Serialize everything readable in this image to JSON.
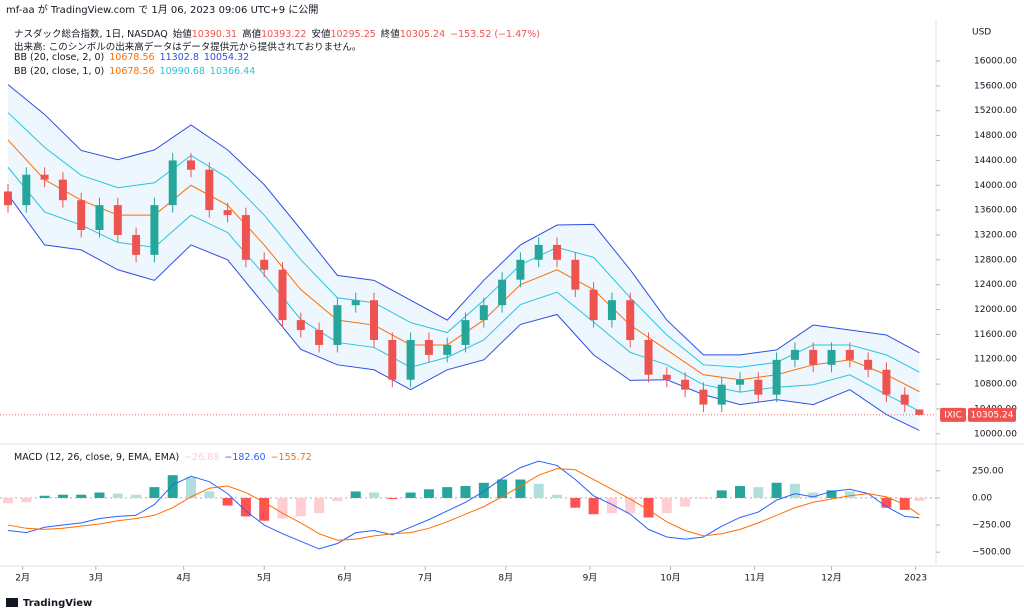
{
  "header": {
    "publisher": "mf-aa が TradingView.com で 1月 06, 2023 09:06 UTC+9 に公開",
    "footer": "TradingView"
  },
  "chart_data": [
    {
      "type": "candlestick",
      "title": "ナスダック総合指数, 1日, NASDAQ",
      "ohlc_labels": [
        "始値",
        "高値",
        "安値",
        "終値"
      ],
      "change": "−153.52 (−1.47%)",
      "volume_note": "出来高: このシンボルの出来高データはデータ提供元から提供されておりません。",
      "currency": "USD",
      "symbol": "IXIC",
      "up_color": "#26a69a",
      "down_color": "#ef5350",
      "x": [
        0,
        5,
        10,
        15,
        20,
        25,
        30,
        35,
        40,
        45,
        50,
        55,
        60,
        65,
        70,
        75,
        80,
        85,
        90,
        95,
        100,
        105,
        110,
        115,
        120,
        125,
        130,
        135,
        140,
        145,
        150,
        155,
        160,
        165,
        170,
        175,
        180,
        185,
        190,
        195,
        200,
        205,
        210,
        215,
        220,
        225,
        230,
        235,
        240,
        245,
        249
      ],
      "open": [
        13900,
        13680,
        14170,
        14090,
        13760,
        13280,
        13680,
        13200,
        12880,
        13680,
        14400,
        14250,
        13600,
        13520,
        12800,
        12640,
        11830,
        11670,
        11430,
        12070,
        12150,
        11510,
        10870,
        11510,
        11270,
        11430,
        11830,
        12070,
        12480,
        12800,
        13040,
        12800,
        12320,
        11830,
        12150,
        11510,
        10950,
        10870,
        10710,
        10470,
        10790,
        10870,
        10630,
        11190,
        11350,
        11110,
        11350,
        11190,
        11030,
        10630,
        10390.31
      ],
      "high": [
        14020,
        14290,
        14290,
        14210,
        13880,
        13800,
        13800,
        13320,
        13800,
        14520,
        14520,
        14370,
        13720,
        13640,
        12920,
        12760,
        11950,
        11790,
        12190,
        12270,
        12270,
        11630,
        11630,
        11630,
        11550,
        11950,
        12190,
        12600,
        12920,
        13160,
        13160,
        12920,
        12440,
        12270,
        12270,
        11630,
        11070,
        10990,
        10830,
        10910,
        10990,
        10990,
        11310,
        11470,
        11470,
        11470,
        11470,
        11310,
        11150,
        10750,
        10393.22
      ],
      "low": [
        13560,
        13560,
        13970,
        13640,
        13160,
        13160,
        13080,
        12760,
        12760,
        13560,
        14130,
        13480,
        13400,
        12680,
        12520,
        11710,
        11550,
        11310,
        11310,
        11950,
        11390,
        10750,
        10750,
        11150,
        11150,
        11310,
        11710,
        11950,
        12360,
        12680,
        12680,
        12200,
        11710,
        11710,
        11390,
        10830,
        10750,
        10590,
        10350,
        10350,
        10670,
        10510,
        10510,
        11070,
        10990,
        10990,
        11070,
        10910,
        10510,
        10350,
        10295.25
      ],
      "close": [
        13680,
        14170,
        14090,
        13760,
        13280,
        13680,
        13200,
        12880,
        13680,
        14400,
        14250,
        13600,
        13520,
        12800,
        12640,
        11830,
        11670,
        11430,
        12070,
        12150,
        11510,
        10870,
        11510,
        11270,
        11430,
        11830,
        12070,
        12480,
        12800,
        13040,
        12800,
        12320,
        11830,
        12150,
        11510,
        10950,
        10870,
        10710,
        10470,
        10790,
        10870,
        10630,
        11190,
        11350,
        11110,
        11350,
        11190,
        11030,
        10630,
        10470,
        10305.24
      ],
      "indicators": [
        {
          "name": "BB (20, close, 2, 0)",
          "x": [
            0,
            10,
            20,
            30,
            40,
            50,
            60,
            70,
            80,
            90,
            100,
            110,
            120,
            130,
            140,
            150,
            160,
            170,
            180,
            190,
            200,
            210,
            220,
            230,
            240,
            249
          ],
          "basis": {
            "color": "#ff6d00",
            "values": [
              14730,
              14090,
              13760,
              13520,
              13520,
              14000,
              13680,
              13040,
              12320,
              11830,
              11750,
              11430,
              11430,
              11830,
              12400,
              12640,
              12320,
              11750,
              11350,
              10950,
              10870,
              10950,
              11110,
              11190,
              10950,
              10678.56
            ]
          },
          "upper": {
            "color": "#2f4fe0",
            "values": [
              15620,
              15140,
              14560,
              14410,
              14570,
              14970,
              14570,
              14010,
              13290,
              12550,
              12470,
              12150,
              11830,
              12470,
              13040,
              13360,
              13370,
              12640,
              11830,
              11270,
              11270,
              11350,
              11750,
              11670,
              11590,
              11302.8
            ]
          },
          "lower": {
            "color": "#2f4fe0",
            "values": [
              13850,
              13040,
              12960,
              12640,
              12470,
              13040,
              12800,
              12080,
              11360,
              11110,
              11030,
              10710,
              11030,
              11190,
              11760,
              11920,
              11270,
              10860,
              10870,
              10630,
              10470,
              10550,
              10470,
              10710,
              10310,
              10054.32
            ]
          },
          "fill": "rgba(33,150,243,0.08)"
        },
        {
          "name": "BB (20, close, 1, 0)",
          "x": [
            0,
            10,
            20,
            30,
            40,
            50,
            60,
            70,
            80,
            90,
            100,
            110,
            120,
            130,
            140,
            150,
            160,
            170,
            180,
            190,
            200,
            210,
            220,
            230,
            240,
            249
          ],
          "upper": {
            "color": "#26c6da",
            "values": [
              15170,
              14610,
              14160,
              13960,
              14040,
              14480,
              14120,
              13520,
              12800,
              12190,
              12110,
              11790,
              11630,
              12150,
              12720,
              13000,
              12840,
              12190,
              11590,
              11110,
              11070,
              11150,
              11430,
              11430,
              11270,
              10990.68
            ]
          },
          "lower": {
            "color": "#26c6da",
            "values": [
              14290,
              13570,
              13360,
              13080,
              13000,
              13520,
              13240,
              12560,
              11840,
              11470,
              11390,
              11070,
              11230,
              11510,
              12080,
              12280,
              11800,
              11310,
              11110,
              10790,
              10670,
              10750,
              10790,
              10950,
              10630,
              10366.44
            ]
          }
        }
      ],
      "xlim": [
        0,
        253
      ],
      "xticks": [
        {
          "value": 4,
          "label": "2月"
        },
        {
          "value": 24,
          "label": "3月"
        },
        {
          "value": 48,
          "label": "4月"
        },
        {
          "value": 70,
          "label": "5月"
        },
        {
          "value": 92,
          "label": "6月"
        },
        {
          "value": 114,
          "label": "7月"
        },
        {
          "value": 136,
          "label": "8月"
        },
        {
          "value": 159,
          "label": "9月"
        },
        {
          "value": 181,
          "label": "10月"
        },
        {
          "value": 204,
          "label": "11月"
        },
        {
          "value": 225,
          "label": "12月"
        },
        {
          "value": 248,
          "label": "2023"
        }
      ],
      "ylim": [
        9900,
        16660
      ],
      "yticks": [
        {
          "value": 10000,
          "label": "10000.00"
        },
        {
          "value": 10400,
          "label": "10400.00"
        },
        {
          "value": 10800,
          "label": "10800.00"
        },
        {
          "value": 11200,
          "label": "11200.00"
        },
        {
          "value": 11600,
          "label": "11600.00"
        },
        {
          "value": 12000,
          "label": "12000.00"
        },
        {
          "value": 12400,
          "label": "12400.00"
        },
        {
          "value": 12800,
          "label": "12800.00"
        },
        {
          "value": 13200,
          "label": "13200.00"
        },
        {
          "value": 13600,
          "label": "13600.00"
        },
        {
          "value": 14000,
          "label": "14000.00"
        },
        {
          "value": 14400,
          "label": "14400.00"
        },
        {
          "value": 14800,
          "label": "14800.00"
        },
        {
          "value": 15200,
          "label": "15200.00"
        },
        {
          "value": 15600,
          "label": "15600.00"
        },
        {
          "value": 16000,
          "label": "16000.00"
        }
      ]
    },
    {
      "type": "macd",
      "title": "MACD (12, 26, close, 9, EMA, EMA)",
      "x": [
        0,
        5,
        10,
        15,
        20,
        25,
        30,
        35,
        40,
        45,
        50,
        55,
        60,
        65,
        70,
        75,
        80,
        85,
        90,
        95,
        100,
        105,
        110,
        115,
        120,
        125,
        130,
        135,
        140,
        145,
        150,
        155,
        160,
        165,
        170,
        175,
        180,
        185,
        190,
        195,
        200,
        205,
        210,
        215,
        220,
        225,
        230,
        235,
        240,
        245,
        249
      ],
      "histogram": {
        "colors": [
          "#26a69a",
          "#b2dfdb",
          "#ffcdd2",
          "#ff5252"
        ],
        "legend_color": "#ffcdd2",
        "values": [
          -50,
          -40,
          20,
          30,
          30,
          50,
          40,
          30,
          100,
          210,
          190,
          60,
          -70,
          -170,
          -210,
          -190,
          -170,
          -140,
          -30,
          60,
          50,
          -10,
          50,
          80,
          100,
          110,
          140,
          170,
          170,
          130,
          30,
          -90,
          -150,
          -140,
          -140,
          -180,
          -140,
          -80,
          -10,
          70,
          110,
          100,
          140,
          130,
          50,
          70,
          60,
          0,
          -90,
          -110,
          -26.88
        ],
        "last_label": "−26.88"
      },
      "series": [
        {
          "color": "#2962ff",
          "last_label": "−182.60",
          "values": [
            -300,
            -320,
            -270,
            -250,
            -230,
            -190,
            -170,
            -160,
            -60,
            120,
            200,
            150,
            40,
            -120,
            -250,
            -330,
            -400,
            -470,
            -420,
            -320,
            -300,
            -340,
            -270,
            -200,
            -120,
            -40,
            60,
            180,
            280,
            340,
            300,
            170,
            20,
            -60,
            -150,
            -290,
            -360,
            -380,
            -360,
            -260,
            -180,
            -130,
            -20,
            40,
            10,
            60,
            80,
            40,
            -80,
            -170,
            -182.6
          ]
        },
        {
          "color": "#ff6d00",
          "last_label": "−155.72",
          "values": [
            -250,
            -280,
            -290,
            -280,
            -260,
            -240,
            -210,
            -190,
            -160,
            -90,
            10,
            90,
            110,
            50,
            -40,
            -140,
            -230,
            -330,
            -390,
            -380,
            -350,
            -330,
            -320,
            -280,
            -220,
            -150,
            -80,
            10,
            110,
            210,
            270,
            260,
            170,
            80,
            -10,
            -110,
            -220,
            -300,
            -350,
            -330,
            -290,
            -230,
            -160,
            -90,
            -40,
            -10,
            20,
            40,
            10,
            -60,
            -155.72
          ]
        }
      ],
      "ylim": [
        -600,
        470
      ],
      "yticks": [
        {
          "value": 250,
          "label": "250.00"
        },
        {
          "value": 0,
          "label": "0.00"
        },
        {
          "value": -250,
          "label": "−250.00"
        },
        {
          "value": -500,
          "label": "−500.00"
        }
      ]
    }
  ]
}
